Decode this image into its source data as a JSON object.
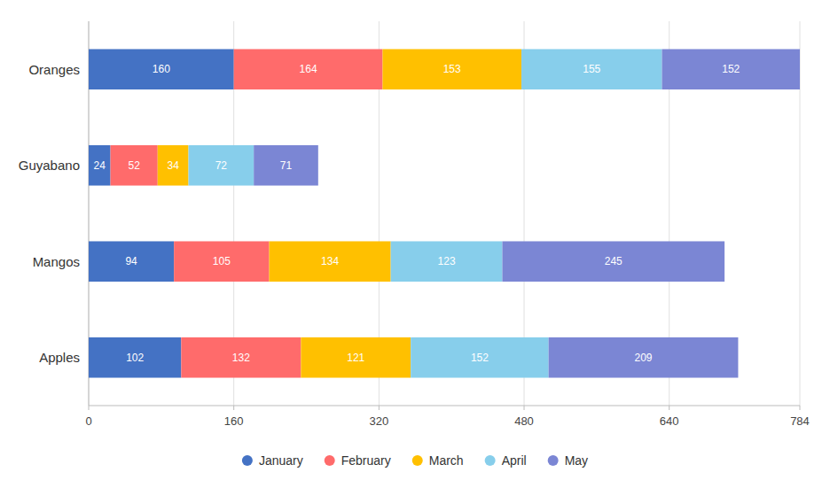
{
  "chart_data": {
    "type": "bar",
    "orientation": "horizontal",
    "stacked": true,
    "data_labels": true,
    "categories": [
      "Apples",
      "Mangos",
      "Guyabano",
      "Oranges"
    ],
    "series": [
      {
        "name": "January",
        "color": "#4472C4",
        "values": [
          102,
          94,
          24,
          160
        ]
      },
      {
        "name": "February",
        "color": "#FF6B6B",
        "values": [
          132,
          105,
          52,
          164
        ]
      },
      {
        "name": "March",
        "color": "#FFC000",
        "values": [
          121,
          134,
          34,
          153
        ]
      },
      {
        "name": "April",
        "color": "#87CEEB",
        "values": [
          152,
          123,
          72,
          155
        ]
      },
      {
        "name": "May",
        "color": "#7B86D4",
        "values": [
          209,
          245,
          71,
          152
        ]
      }
    ],
    "xlim": [
      0,
      784
    ],
    "xticks": [
      0,
      160,
      320,
      480,
      640,
      784
    ],
    "grid": true,
    "legend": "bottom"
  }
}
